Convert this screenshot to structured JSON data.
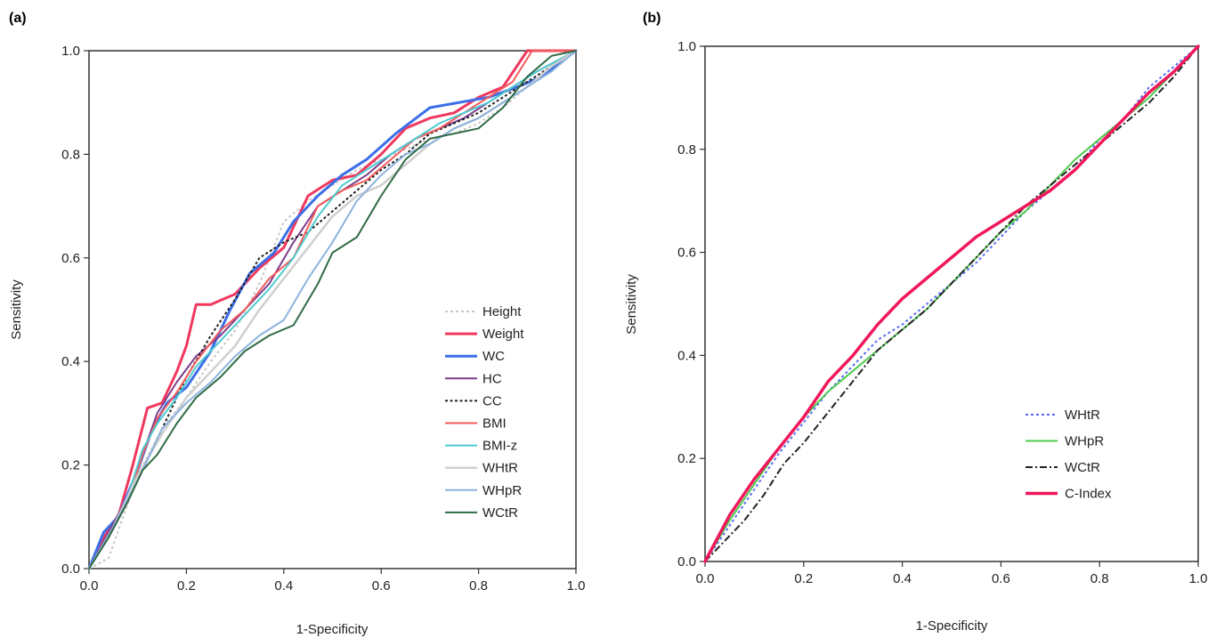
{
  "chart_data": [
    {
      "type": "line",
      "panel_label": "(a)",
      "xlabel": "1-Specificity",
      "ylabel": "Sensitivity",
      "xlim": [
        0,
        1
      ],
      "ylim": [
        0,
        1
      ],
      "x_ticks": [
        "0.0",
        "0.2",
        "0.4",
        "0.6",
        "0.8",
        "1.0"
      ],
      "y_ticks": [
        "0.0",
        "0.2",
        "0.4",
        "0.6",
        "0.8",
        "1.0"
      ],
      "grid": false,
      "legend_position": "bottom-right",
      "series": [
        {
          "name": "Height",
          "color": "#c8c8c8",
          "style": "dotted",
          "width": 2,
          "x": [
            0,
            0.04,
            0.07,
            0.1,
            0.15,
            0.2,
            0.25,
            0.3,
            0.35,
            0.4,
            0.45,
            0.5,
            0.55,
            0.6,
            0.65,
            0.7,
            0.75,
            0.8,
            0.85,
            0.9,
            0.95,
            1.0
          ],
          "y": [
            0,
            0.02,
            0.1,
            0.18,
            0.27,
            0.33,
            0.4,
            0.46,
            0.55,
            0.67,
            0.71,
            0.74,
            0.77,
            0.79,
            0.81,
            0.83,
            0.84,
            0.86,
            0.89,
            0.93,
            0.97,
            1.0
          ]
        },
        {
          "name": "Weight",
          "color": "#f0385e",
          "style": "solid",
          "width": 3,
          "x": [
            0,
            0.03,
            0.06,
            0.09,
            0.12,
            0.15,
            0.18,
            0.2,
            0.22,
            0.25,
            0.3,
            0.35,
            0.4,
            0.45,
            0.5,
            0.55,
            0.6,
            0.65,
            0.7,
            0.75,
            0.8,
            0.85,
            0.9,
            0.95,
            1.0
          ],
          "y": [
            0,
            0.06,
            0.1,
            0.2,
            0.31,
            0.32,
            0.38,
            0.43,
            0.51,
            0.51,
            0.53,
            0.58,
            0.62,
            0.72,
            0.75,
            0.76,
            0.8,
            0.85,
            0.87,
            0.88,
            0.91,
            0.93,
            1.0,
            1.0,
            1.0
          ]
        },
        {
          "name": "WC",
          "color": "#3b6ee8",
          "style": "solid",
          "width": 3,
          "x": [
            0,
            0.03,
            0.06,
            0.1,
            0.13,
            0.16,
            0.2,
            0.25,
            0.29,
            0.33,
            0.38,
            0.42,
            0.47,
            0.52,
            0.57,
            0.63,
            0.7,
            0.76,
            0.82,
            0.88,
            0.93,
            0.97,
            1.0
          ],
          "y": [
            0,
            0.07,
            0.1,
            0.19,
            0.27,
            0.32,
            0.35,
            0.42,
            0.5,
            0.57,
            0.61,
            0.67,
            0.72,
            0.76,
            0.79,
            0.84,
            0.89,
            0.9,
            0.91,
            0.93,
            0.95,
            0.98,
            1.0
          ]
        },
        {
          "name": "HC",
          "color": "#7d3c8c",
          "style": "solid",
          "width": 2,
          "x": [
            0,
            0.04,
            0.08,
            0.11,
            0.14,
            0.18,
            0.22,
            0.27,
            0.32,
            0.37,
            0.42,
            0.47,
            0.52,
            0.57,
            0.62,
            0.67,
            0.72,
            0.77,
            0.82,
            0.87,
            0.92,
            0.96,
            1.0
          ],
          "y": [
            0,
            0.07,
            0.14,
            0.22,
            0.3,
            0.36,
            0.41,
            0.45,
            0.5,
            0.55,
            0.63,
            0.7,
            0.73,
            0.76,
            0.8,
            0.83,
            0.85,
            0.87,
            0.9,
            0.93,
            0.96,
            0.98,
            1.0
          ]
        },
        {
          "name": "CC",
          "color": "#222222",
          "style": "dotted-bold",
          "width": 2,
          "x": [
            0,
            0.05,
            0.1,
            0.15,
            0.2,
            0.25,
            0.3,
            0.35,
            0.4,
            0.45,
            0.5,
            0.55,
            0.6,
            0.65,
            0.7,
            0.75,
            0.8,
            0.85,
            0.9,
            0.95,
            1.0
          ],
          "y": [
            0,
            0.08,
            0.17,
            0.27,
            0.37,
            0.45,
            0.52,
            0.6,
            0.63,
            0.65,
            0.69,
            0.73,
            0.77,
            0.8,
            0.84,
            0.86,
            0.88,
            0.91,
            0.94,
            0.97,
            1.0
          ]
        },
        {
          "name": "BMI",
          "color": "#f25c5c",
          "style": "solid",
          "width": 2,
          "x": [
            0,
            0.04,
            0.08,
            0.11,
            0.14,
            0.18,
            0.22,
            0.27,
            0.32,
            0.37,
            0.42,
            0.47,
            0.52,
            0.57,
            0.62,
            0.67,
            0.72,
            0.77,
            0.82,
            0.87,
            0.91,
            0.96,
            1.0
          ],
          "y": [
            0,
            0.06,
            0.13,
            0.22,
            0.29,
            0.34,
            0.4,
            0.46,
            0.5,
            0.56,
            0.6,
            0.7,
            0.73,
            0.75,
            0.79,
            0.83,
            0.85,
            0.88,
            0.91,
            0.94,
            1.0,
            1.0,
            1.0
          ]
        },
        {
          "name": "BMI-z",
          "color": "#4ecbd0",
          "style": "solid",
          "width": 2,
          "x": [
            0,
            0.04,
            0.08,
            0.11,
            0.14,
            0.18,
            0.22,
            0.27,
            0.32,
            0.37,
            0.42,
            0.47,
            0.52,
            0.57,
            0.62,
            0.67,
            0.72,
            0.77,
            0.82,
            0.87,
            0.92,
            0.96,
            1.0
          ],
          "y": [
            0,
            0.06,
            0.14,
            0.23,
            0.28,
            0.33,
            0.39,
            0.44,
            0.49,
            0.54,
            0.6,
            0.68,
            0.74,
            0.77,
            0.8,
            0.83,
            0.86,
            0.88,
            0.9,
            0.93,
            0.96,
            0.98,
            1.0
          ]
        },
        {
          "name": "WHtR",
          "color": "#cfcfcf",
          "style": "solid",
          "width": 2.5,
          "x": [
            0,
            0.05,
            0.1,
            0.15,
            0.2,
            0.25,
            0.3,
            0.35,
            0.4,
            0.45,
            0.5,
            0.55,
            0.6,
            0.65,
            0.7,
            0.75,
            0.8,
            0.85,
            0.9,
            0.95,
            1.0
          ],
          "y": [
            0,
            0.08,
            0.18,
            0.26,
            0.33,
            0.38,
            0.43,
            0.5,
            0.56,
            0.62,
            0.68,
            0.72,
            0.74,
            0.78,
            0.82,
            0.85,
            0.87,
            0.9,
            0.93,
            0.97,
            1.0
          ]
        },
        {
          "name": "WHpR",
          "color": "#8db3de",
          "style": "solid",
          "width": 2,
          "x": [
            0,
            0.05,
            0.1,
            0.15,
            0.2,
            0.25,
            0.3,
            0.35,
            0.4,
            0.45,
            0.5,
            0.55,
            0.6,
            0.65,
            0.7,
            0.75,
            0.8,
            0.85,
            0.9,
            0.95,
            1.0
          ],
          "y": [
            0,
            0.08,
            0.17,
            0.27,
            0.32,
            0.36,
            0.41,
            0.45,
            0.48,
            0.56,
            0.63,
            0.71,
            0.76,
            0.8,
            0.82,
            0.85,
            0.87,
            0.9,
            0.93,
            0.96,
            1.0
          ]
        },
        {
          "name": "WCtR",
          "color": "#2f6b45",
          "style": "solid",
          "width": 2,
          "x": [
            0,
            0.04,
            0.08,
            0.11,
            0.14,
            0.18,
            0.22,
            0.27,
            0.32,
            0.37,
            0.42,
            0.47,
            0.5,
            0.55,
            0.6,
            0.65,
            0.7,
            0.75,
            0.8,
            0.85,
            0.9,
            0.95,
            1.0
          ],
          "y": [
            0,
            0.06,
            0.13,
            0.19,
            0.22,
            0.28,
            0.33,
            0.37,
            0.42,
            0.45,
            0.47,
            0.55,
            0.61,
            0.64,
            0.72,
            0.79,
            0.83,
            0.84,
            0.85,
            0.89,
            0.95,
            0.99,
            1.0
          ]
        }
      ]
    },
    {
      "type": "line",
      "panel_label": "(b)",
      "xlabel": "1-Specificity",
      "ylabel": "Sensitivity",
      "xlim": [
        0,
        1
      ],
      "ylim": [
        0,
        1
      ],
      "x_ticks": [
        "0.0",
        "0.2",
        "0.4",
        "0.6",
        "0.8",
        "1.0"
      ],
      "y_ticks": [
        "0.0",
        "0.2",
        "0.4",
        "0.6",
        "0.8",
        "1.0"
      ],
      "grid": false,
      "legend_position": "center-right",
      "series": [
        {
          "name": "WHtR",
          "color": "#5b6ef5",
          "style": "dotted",
          "width": 2,
          "x": [
            0,
            0.05,
            0.1,
            0.15,
            0.2,
            0.25,
            0.3,
            0.35,
            0.4,
            0.45,
            0.5,
            0.55,
            0.6,
            0.65,
            0.7,
            0.75,
            0.8,
            0.85,
            0.9,
            0.95,
            1.0
          ],
          "y": [
            0,
            0.07,
            0.14,
            0.21,
            0.27,
            0.33,
            0.38,
            0.43,
            0.46,
            0.5,
            0.54,
            0.58,
            0.63,
            0.68,
            0.72,
            0.76,
            0.82,
            0.86,
            0.92,
            0.96,
            1.0
          ]
        },
        {
          "name": "WHpR",
          "color": "#4ec94e",
          "style": "solid",
          "width": 2,
          "x": [
            0,
            0.05,
            0.1,
            0.15,
            0.2,
            0.25,
            0.3,
            0.35,
            0.4,
            0.45,
            0.5,
            0.55,
            0.6,
            0.65,
            0.7,
            0.75,
            0.8,
            0.85,
            0.9,
            0.95,
            1.0
          ],
          "y": [
            0,
            0.08,
            0.15,
            0.22,
            0.28,
            0.33,
            0.37,
            0.41,
            0.45,
            0.49,
            0.54,
            0.59,
            0.64,
            0.68,
            0.73,
            0.78,
            0.82,
            0.86,
            0.9,
            0.95,
            1.0
          ]
        },
        {
          "name": "WCtR",
          "color": "#222222",
          "style": "dashdot",
          "width": 2,
          "x": [
            0,
            0.04,
            0.08,
            0.12,
            0.16,
            0.2,
            0.25,
            0.3,
            0.35,
            0.4,
            0.45,
            0.5,
            0.55,
            0.6,
            0.65,
            0.7,
            0.75,
            0.8,
            0.85,
            0.9,
            0.95,
            1.0
          ],
          "y": [
            0,
            0.04,
            0.08,
            0.13,
            0.19,
            0.23,
            0.29,
            0.35,
            0.41,
            0.45,
            0.49,
            0.54,
            0.59,
            0.64,
            0.69,
            0.73,
            0.77,
            0.81,
            0.85,
            0.89,
            0.94,
            1.0
          ]
        },
        {
          "name": "C-Index",
          "color": "#f0185a",
          "style": "solid",
          "width": 3.5,
          "x": [
            0,
            0.05,
            0.1,
            0.15,
            0.2,
            0.25,
            0.3,
            0.35,
            0.4,
            0.45,
            0.5,
            0.55,
            0.6,
            0.65,
            0.7,
            0.75,
            0.8,
            0.85,
            0.9,
            0.95,
            1.0
          ],
          "y": [
            0,
            0.09,
            0.16,
            0.22,
            0.28,
            0.35,
            0.4,
            0.46,
            0.51,
            0.55,
            0.59,
            0.63,
            0.66,
            0.69,
            0.72,
            0.76,
            0.81,
            0.86,
            0.91,
            0.95,
            1.0
          ]
        }
      ]
    }
  ]
}
